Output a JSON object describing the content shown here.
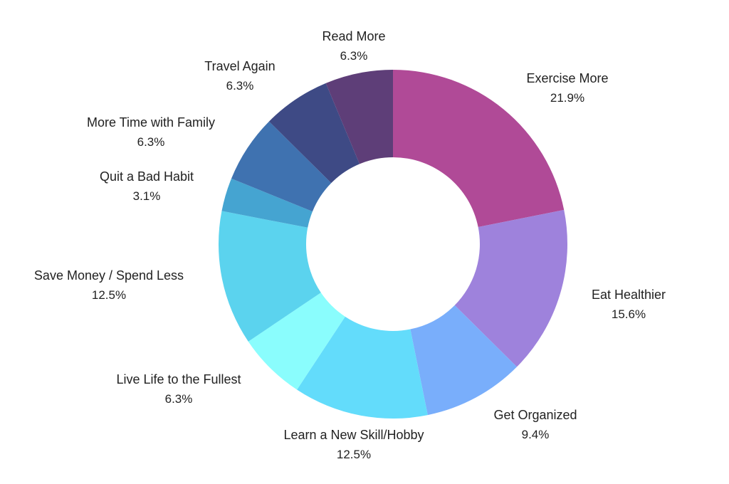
{
  "chart_data": {
    "type": "pie",
    "title": "",
    "slices": [
      {
        "label": "Exercise More",
        "value": 21.9,
        "display": "21.9%",
        "color": "#B04A97"
      },
      {
        "label": "Eat Healthier",
        "value": 15.6,
        "display": "15.6%",
        "color": "#9E82DC"
      },
      {
        "label": "Get Organized",
        "value": 9.4,
        "display": "9.4%",
        "color": "#79AEFB"
      },
      {
        "label": "Learn a New Skill/Hobby",
        "value": 12.5,
        "display": "12.5%",
        "color": "#63DCFB"
      },
      {
        "label": "Live Life to the Fullest",
        "value": 6.3,
        "display": "6.3%",
        "color": "#8AFDFD"
      },
      {
        "label": "Save Money / Spend Less",
        "value": 12.5,
        "display": "12.5%",
        "color": "#5BD3EE"
      },
      {
        "label": "Quit a Bad Habit",
        "value": 3.1,
        "display": "3.1%",
        "color": "#45A4D1"
      },
      {
        "label": "More Time with Family",
        "value": 6.3,
        "display": "6.3%",
        "color": "#3F72B0"
      },
      {
        "label": "Travel Again",
        "value": 6.3,
        "display": "6.3%",
        "color": "#3E4A85"
      },
      {
        "label": "Read More",
        "value": 6.3,
        "display": "6.3%",
        "color": "#5E3E78"
      }
    ],
    "donut": true,
    "start_angle": "12 o'clock",
    "direction": "clockwise",
    "legend": "none",
    "labels": "outside"
  }
}
